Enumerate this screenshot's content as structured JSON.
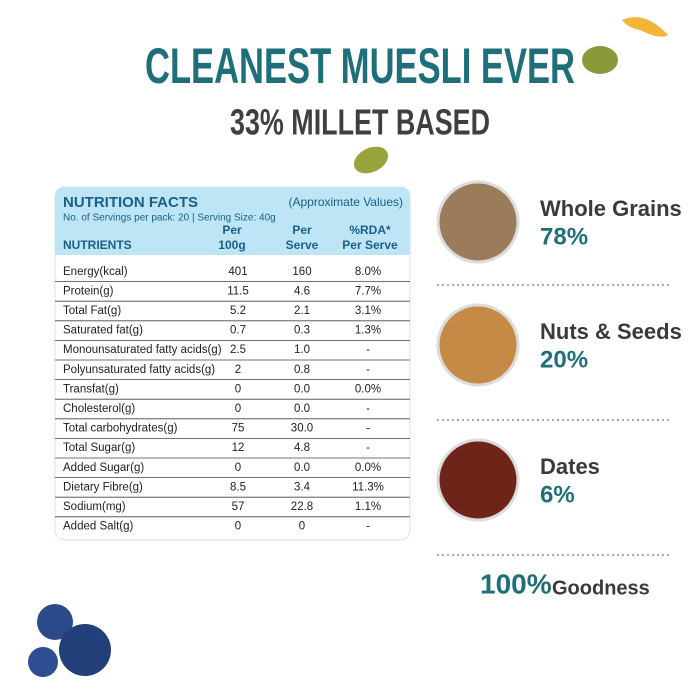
{
  "title": "CLEANEST MUESLI EVER",
  "subtitle": "33% MILLET BASED",
  "nutrition": {
    "title": "NUTRITION FACTS",
    "note": "(Approximate Values)",
    "servings": "No. of Servings per pack: 20 | Serving Size: 40g",
    "headers": {
      "nutrients": "NUTRIENTS",
      "per100g": [
        "Per",
        "100g"
      ],
      "perServe": [
        "Per",
        "Serve"
      ],
      "rda": [
        "%RDA*",
        "Per Serve"
      ]
    },
    "rows": [
      [
        "Energy(kcal)",
        "401",
        "160",
        "8.0%"
      ],
      [
        "Protein(g)",
        "11.5",
        "4.6",
        "7.7%"
      ],
      [
        "Total Fat(g)",
        "5.2",
        "2.1",
        "3.1%"
      ],
      [
        "Saturated fat(g)",
        "0.7",
        "0.3",
        "1.3%"
      ],
      [
        "Monounsaturated fatty acids(g)",
        "2.5",
        "1.0",
        "-"
      ],
      [
        "Polyunsaturated fatty acids(g)",
        "2",
        "0.8",
        "-"
      ],
      [
        "Transfat(g)",
        "0",
        "0.0",
        "0.0%"
      ],
      [
        "Cholesterol(g)",
        "0",
        "0.0",
        "-"
      ],
      [
        "Total carbohydrates(g)",
        "75",
        "30.0",
        "-"
      ],
      [
        "Total Sugar(g)",
        "12",
        "4.8",
        "-"
      ],
      [
        "Added Sugar(g)",
        "0",
        "0.0",
        "0.0%"
      ],
      [
        "Dietary Fibre(g)",
        "8.5",
        "3.4",
        "11.3%"
      ],
      [
        "Sodium(mg)",
        "57",
        "22.8",
        "1.1%"
      ],
      [
        "Added Salt(g)",
        "0",
        "0",
        "-"
      ]
    ]
  },
  "highlights": [
    {
      "label": "Whole Grains",
      "value": "78%"
    },
    {
      "label": "Nuts & Seeds",
      "value": "20%"
    },
    {
      "label": "Dates",
      "value": "6%"
    }
  ],
  "footer": {
    "value": "100%",
    "label": "Goodness"
  }
}
